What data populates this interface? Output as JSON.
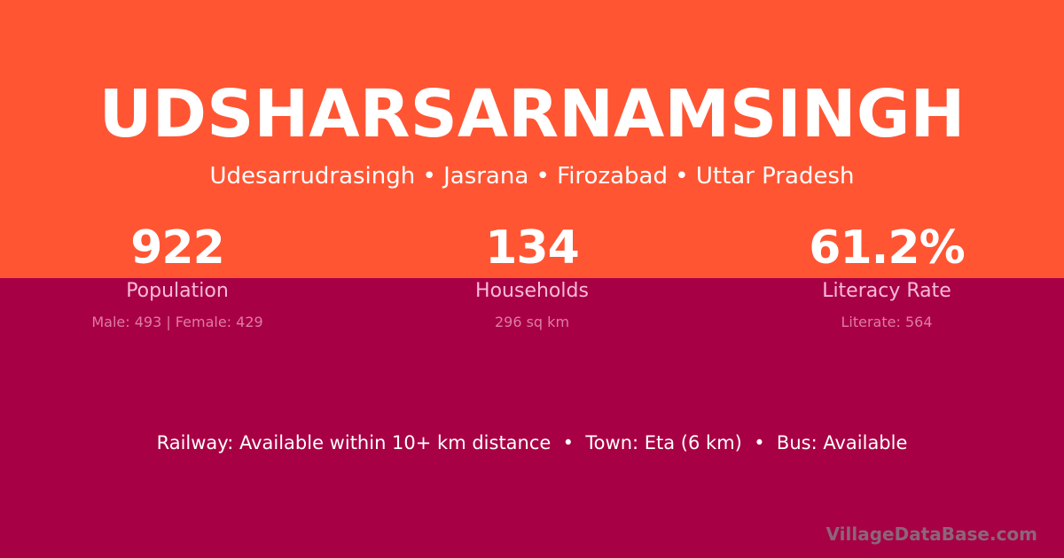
{
  "colors": {
    "top": "#FF5533",
    "bottom": "#A80044"
  },
  "title": "UDSHARSARNAMSINGH",
  "subtitle": "Udesarrudrasingh • Jasrana • Firozabad • Uttar Pradesh",
  "stats": [
    {
      "value": "922",
      "label": "Population",
      "sub": "Male: 493 | Female: 429"
    },
    {
      "value": "134",
      "label": "Households",
      "sub": "296 sq km"
    },
    {
      "value": "61.2%",
      "label": "Literacy Rate",
      "sub": "Literate: 564"
    }
  ],
  "info": "Railway: Available within 10+ km distance  •  Town: Eta (6 km)  •  Bus: Available",
  "brand": "VillageDataBase.com"
}
